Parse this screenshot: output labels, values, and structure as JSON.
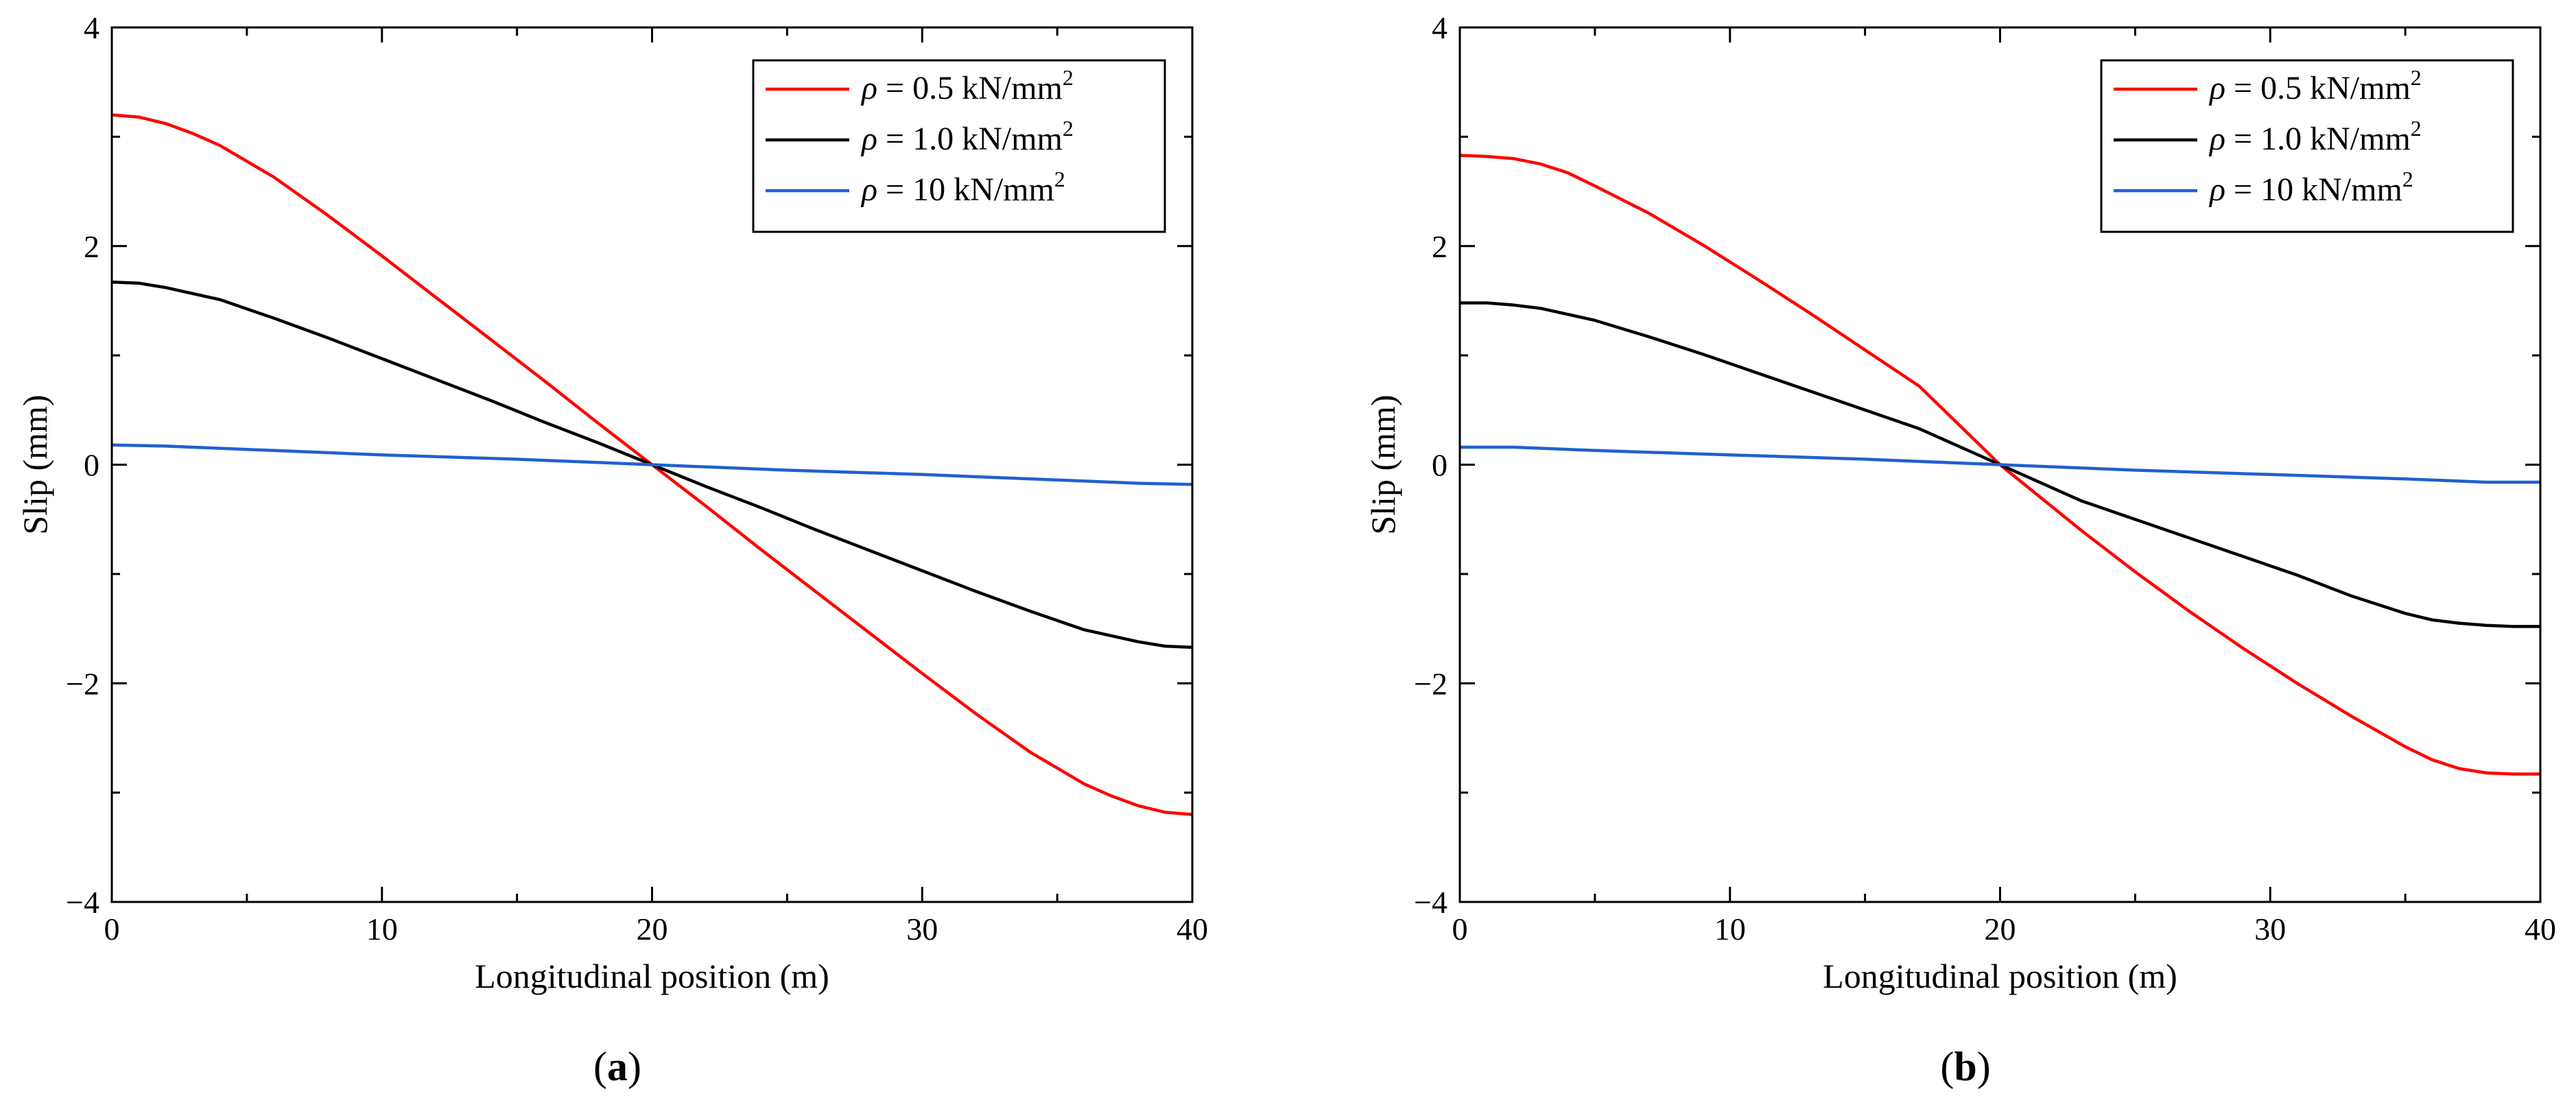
{
  "chart_data": [
    {
      "type": "line",
      "panel_label": "(a)",
      "panel_letter": "a",
      "xlabel": "Longitudinal position (m)",
      "ylabel": "Slip (mm)",
      "xlim": [
        0,
        40
      ],
      "ylim": [
        -4,
        4
      ],
      "xticks": [
        0,
        10,
        20,
        30,
        40
      ],
      "yticks": [
        4,
        2,
        0,
        -2,
        -4
      ],
      "ytick_labels": [
        "4",
        "2",
        "0",
        "−2",
        "−4"
      ],
      "legend_position": "top-right",
      "grid": false,
      "series": [
        {
          "name": "ρ = 0.5 kN/mm2",
          "symbol": "ρ",
          "label_text": " = 0.5 kN/mm",
          "superscript": "2",
          "color": "#ff0000",
          "x": [
            0,
            1,
            2,
            3,
            4,
            6,
            8,
            10,
            12,
            14,
            16,
            18,
            20,
            22,
            24,
            26,
            28,
            30,
            32,
            34,
            36,
            37,
            38,
            39,
            40
          ],
          "y": [
            3.2,
            3.18,
            3.12,
            3.03,
            2.92,
            2.63,
            2.28,
            1.91,
            1.53,
            1.15,
            0.77,
            0.38,
            0.0,
            -0.38,
            -0.77,
            -1.15,
            -1.53,
            -1.91,
            -2.28,
            -2.63,
            -2.92,
            -3.03,
            -3.12,
            -3.18,
            -3.2
          ]
        },
        {
          "name": "ρ = 1.0 kN/mm2",
          "symbol": "ρ",
          "label_text": " = 1.0 kN/mm",
          "superscript": "2",
          "color": "#000000",
          "x": [
            0,
            1,
            2,
            4,
            6,
            8,
            10,
            12,
            14,
            16,
            18,
            20,
            22,
            24,
            26,
            28,
            30,
            32,
            34,
            36,
            38,
            39,
            40
          ],
          "y": [
            1.67,
            1.66,
            1.62,
            1.51,
            1.34,
            1.16,
            0.97,
            0.78,
            0.59,
            0.39,
            0.2,
            0.0,
            -0.2,
            -0.39,
            -0.59,
            -0.78,
            -0.97,
            -1.16,
            -1.34,
            -1.51,
            -1.62,
            -1.66,
            -1.67
          ]
        },
        {
          "name": "ρ = 10 kN/mm2",
          "symbol": "ρ",
          "label_text": " = 10 kN/mm",
          "superscript": "2",
          "color": "#2060d0",
          "x": [
            0,
            2,
            5,
            10,
            15,
            20,
            25,
            30,
            35,
            38,
            40
          ],
          "y": [
            0.18,
            0.17,
            0.14,
            0.09,
            0.05,
            0.0,
            -0.05,
            -0.09,
            -0.14,
            -0.17,
            -0.18
          ]
        }
      ]
    },
    {
      "type": "line",
      "panel_label": "(b)",
      "panel_letter": "b",
      "xlabel": "Longitudinal position (m)",
      "ylabel": "Slip (mm)",
      "xlim": [
        0,
        40
      ],
      "ylim": [
        -4,
        4
      ],
      "xticks": [
        0,
        10,
        20,
        30,
        40
      ],
      "yticks": [
        4,
        2,
        0,
        -2,
        -4
      ],
      "ytick_labels": [
        "4",
        "2",
        "0",
        "−2",
        "−4"
      ],
      "legend_position": "top-right",
      "grid": false,
      "series": [
        {
          "name": "ρ = 0.5 kN/mm2",
          "symbol": "ρ",
          "label_text": " = 0.5 kN/mm",
          "superscript": "2",
          "color": "#ff0000",
          "x": [
            0,
            1,
            2,
            3,
            4,
            5,
            7,
            9,
            11,
            13,
            15,
            17,
            20,
            23,
            25,
            27,
            29,
            31,
            33,
            35,
            36,
            37,
            38,
            39,
            40
          ],
          "y": [
            2.83,
            2.82,
            2.8,
            2.75,
            2.67,
            2.55,
            2.3,
            2.01,
            1.7,
            1.38,
            1.05,
            0.72,
            0.0,
            -0.6,
            -0.98,
            -1.34,
            -1.68,
            -2.0,
            -2.3,
            -2.58,
            -2.7,
            -2.78,
            -2.82,
            -2.83,
            -2.83
          ]
        },
        {
          "name": "ρ = 1.0 kN/mm2",
          "symbol": "ρ",
          "label_text": " = 1.0 kN/mm",
          "superscript": "2",
          "color": "#000000",
          "x": [
            0,
            1,
            2,
            3,
            5,
            7,
            9,
            11,
            13,
            15,
            17,
            20,
            23,
            25,
            27,
            29,
            31,
            33,
            35,
            36,
            37,
            38,
            39,
            40
          ],
          "y": [
            1.48,
            1.48,
            1.46,
            1.43,
            1.32,
            1.17,
            1.01,
            0.84,
            0.67,
            0.5,
            0.33,
            0.0,
            -0.33,
            -0.5,
            -0.67,
            -0.84,
            -1.01,
            -1.2,
            -1.36,
            -1.42,
            -1.45,
            -1.47,
            -1.48,
            -1.48
          ]
        },
        {
          "name": "ρ = 10 kN/mm2",
          "symbol": "ρ",
          "label_text": " = 10 kN/mm",
          "superscript": "2",
          "color": "#2060d0",
          "x": [
            0,
            2,
            5,
            10,
            15,
            20,
            25,
            30,
            35,
            38,
            40
          ],
          "y": [
            0.16,
            0.16,
            0.13,
            0.09,
            0.05,
            0.0,
            -0.05,
            -0.09,
            -0.13,
            -0.16,
            -0.16
          ]
        }
      ]
    }
  ]
}
